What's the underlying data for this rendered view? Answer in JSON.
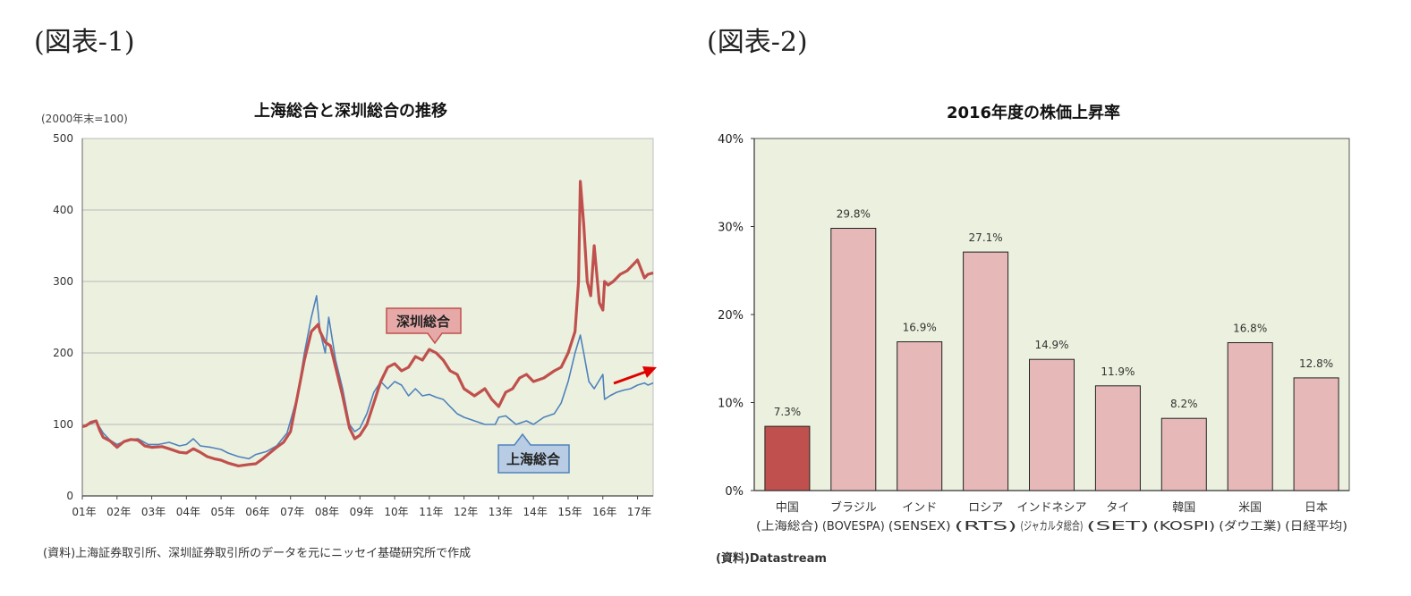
{
  "panels": {
    "left_label": "(図表-1)",
    "right_label": "(図表-2)"
  },
  "colors": {
    "plot_bg": "#ebf1de",
    "shenzhen": "#c0504d",
    "shanghai": "#4f81bd",
    "bar_china": "#c0504d",
    "bar_other": "#e6b9b8",
    "arrow": "#e00000"
  },
  "chart_data": [
    {
      "type": "line",
      "title": "上海総合と深圳総合の推移",
      "unit_note": "(2000年末=100)",
      "x_tick_labels": [
        "01年",
        "02年",
        "03年",
        "04年",
        "05年",
        "06年",
        "07年",
        "08年",
        "09年",
        "10年",
        "11年",
        "12年",
        "13年",
        "14年",
        "15年",
        "16年",
        "17年"
      ],
      "x_range": [
        2001.0,
        2017.45
      ],
      "ylim": [
        0,
        500
      ],
      "yticks": [
        0,
        100,
        200,
        300,
        400,
        500
      ],
      "grid": true,
      "series": [
        {
          "name": "深圳総合",
          "x": [
            2001.0,
            2001.1,
            2001.25,
            2001.4,
            2001.5,
            2001.6,
            2001.8,
            2002.0,
            2002.2,
            2002.4,
            2002.6,
            2002.8,
            2003.0,
            2003.3,
            2003.5,
            2003.8,
            2004.0,
            2004.2,
            2004.4,
            2004.6,
            2004.8,
            2005.0,
            2005.2,
            2005.5,
            2005.8,
            2006.0,
            2006.2,
            2006.4,
            2006.6,
            2006.8,
            2007.0,
            2007.2,
            2007.4,
            2007.6,
            2007.8,
            2007.85,
            2008.0,
            2008.15,
            2008.3,
            2008.5,
            2008.7,
            2008.85,
            2009.0,
            2009.2,
            2009.4,
            2009.6,
            2009.8,
            2010.0,
            2010.2,
            2010.4,
            2010.6,
            2010.8,
            2011.0,
            2011.2,
            2011.4,
            2011.6,
            2011.8,
            2012.0,
            2012.3,
            2012.6,
            2012.8,
            2013.0,
            2013.2,
            2013.4,
            2013.6,
            2013.8,
            2014.0,
            2014.3,
            2014.6,
            2014.8,
            2015.0,
            2015.2,
            2015.3,
            2015.35,
            2015.45,
            2015.55,
            2015.65,
            2015.75,
            2015.9,
            2016.0,
            2016.05,
            2016.15,
            2016.3,
            2016.5,
            2016.7,
            2016.9,
            2017.0,
            2017.2,
            2017.3,
            2017.45
          ],
          "y": [
            97,
            98,
            103,
            105,
            92,
            82,
            77,
            68,
            76,
            79,
            78,
            70,
            68,
            69,
            66,
            61,
            60,
            66,
            61,
            55,
            52,
            50,
            46,
            42,
            44,
            45,
            52,
            60,
            68,
            75,
            90,
            140,
            190,
            230,
            240,
            230,
            215,
            210,
            180,
            140,
            95,
            80,
            85,
            100,
            130,
            160,
            180,
            185,
            175,
            180,
            195,
            190,
            205,
            200,
            190,
            175,
            170,
            150,
            140,
            150,
            135,
            125,
            145,
            150,
            165,
            170,
            160,
            165,
            175,
            180,
            200,
            230,
            300,
            440,
            380,
            300,
            280,
            350,
            270,
            260,
            300,
            295,
            300,
            310,
            315,
            325,
            330,
            305,
            310,
            312
          ]
        },
        {
          "name": "上海総合",
          "x": [
            2001.0,
            2001.2,
            2001.4,
            2001.6,
            2001.8,
            2002.0,
            2002.3,
            2002.6,
            2002.9,
            2003.2,
            2003.5,
            2003.8,
            2004.0,
            2004.2,
            2004.4,
            2004.7,
            2005.0,
            2005.2,
            2005.5,
            2005.8,
            2006.0,
            2006.3,
            2006.6,
            2006.9,
            2007.0,
            2007.2,
            2007.4,
            2007.6,
            2007.75,
            2007.85,
            2008.0,
            2008.1,
            2008.3,
            2008.5,
            2008.7,
            2008.85,
            2009.0,
            2009.2,
            2009.4,
            2009.6,
            2009.8,
            2010.0,
            2010.2,
            2010.4,
            2010.6,
            2010.8,
            2011.0,
            2011.2,
            2011.4,
            2011.6,
            2011.8,
            2012.0,
            2012.3,
            2012.6,
            2012.9,
            2013.0,
            2013.2,
            2013.5,
            2013.8,
            2014.0,
            2014.3,
            2014.6,
            2014.8,
            2015.0,
            2015.2,
            2015.35,
            2015.45,
            2015.6,
            2015.75,
            2016.0,
            2016.05,
            2016.2,
            2016.4,
            2016.6,
            2016.8,
            2017.0,
            2017.2,
            2017.3,
            2017.45
          ],
          "y": [
            98,
            100,
            104,
            88,
            78,
            72,
            78,
            80,
            72,
            72,
            75,
            70,
            72,
            80,
            70,
            68,
            65,
            60,
            55,
            52,
            58,
            62,
            70,
            88,
            105,
            140,
            200,
            250,
            280,
            230,
            200,
            250,
            190,
            150,
            100,
            90,
            95,
            115,
            145,
            160,
            150,
            160,
            155,
            140,
            150,
            140,
            142,
            138,
            135,
            125,
            115,
            110,
            105,
            100,
            100,
            110,
            112,
            100,
            105,
            100,
            110,
            115,
            130,
            160,
            200,
            225,
            200,
            160,
            150,
            170,
            135,
            140,
            145,
            148,
            150,
            155,
            158,
            155,
            158
          ]
        }
      ]
    },
    {
      "type": "bar",
      "title": "2016年度の株価上昇率",
      "categories": [
        "中国",
        "ブラジル",
        "インド",
        "ロシア",
        "インドネシア",
        "タイ",
        "韓国",
        "米国",
        "日本"
      ],
      "sublabels": [
        "(上海総合)",
        "(BOVESPA)",
        "(SENSEX)",
        "(RTS)",
        "(ジャカルタ総合)",
        "(SET)",
        "(KOSPI)",
        "(ダウ工業)",
        "(日経平均)"
      ],
      "values": [
        7.3,
        29.8,
        16.9,
        27.1,
        14.9,
        11.9,
        8.2,
        16.8,
        12.8
      ],
      "value_labels": [
        "7.3%",
        "29.8%",
        "16.9%",
        "27.1%",
        "14.9%",
        "11.9%",
        "8.2%",
        "16.8%",
        "12.8%"
      ],
      "ylim": [
        0,
        40
      ],
      "yticks": [
        0,
        10,
        20,
        30,
        40
      ],
      "ytick_labels": [
        "0%",
        "10%",
        "20%",
        "30%",
        "40%"
      ],
      "grid": false
    }
  ],
  "sources": {
    "left": "(資料)上海証券取引所、深圳証券取引所のデータを元にニッセイ基礎研究所で作成",
    "right": "(資料)Datastream"
  }
}
